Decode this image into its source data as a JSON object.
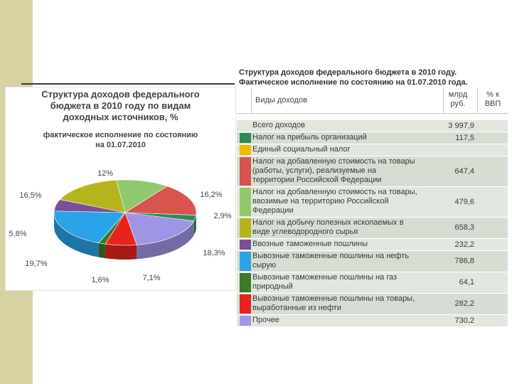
{
  "pie_panel": {
    "title_lines": [
      "Структура доходов федерального",
      "бюджета в 2010 году по видам",
      "доходных источников, %"
    ],
    "subtitle_lines": [
      "фактическое исполнение по состоянию",
      "на 01.07.2010"
    ]
  },
  "table_panel": {
    "caption_lines": [
      "Структура доходов федерального бюджета в 2010 году.",
      "Фактическое исполнение по состоянию на 01.07.2010 года."
    ],
    "header": {
      "col1": "Виды доходов",
      "col2_lines": [
        "млрд",
        "руб."
      ],
      "col3_lines": [
        "% к",
        "ВВП"
      ]
    },
    "rows": [
      {
        "lines": [
          "Всего доходов"
        ],
        "value": "3 997,9",
        "color": ""
      },
      {
        "lines": [
          "Налог на прибыль организаций"
        ],
        "value": "117,5",
        "color": "#2e8b57"
      },
      {
        "lines": [
          "Единый социальный налог"
        ],
        "value": "",
        "color": "#f5b800"
      },
      {
        "lines": [
          "Налог на добавленную стоимость на товары",
          "(работы, услуги), реализуемые на",
          "территории Российской Федерации"
        ],
        "value": "647,4",
        "color": "#d9534f"
      },
      {
        "lines": [
          "Налог на добавленную стоимость на товары,",
          "ввозимые на территорию Российской",
          "Федерации"
        ],
        "value": "479,6",
        "color": "#8fc96b"
      },
      {
        "lines": [
          "Налог на добычу полезных ископаемых в",
          "виде углеводородного сырья"
        ],
        "value": "658,3",
        "color": "#b5b41c"
      },
      {
        "lines": [
          "Ввозные таможенные пошлины"
        ],
        "value": "232,2",
        "color": "#7a4f9a"
      },
      {
        "lines": [
          "Вывозные таможенные пошлины на нефть",
          "сырую"
        ],
        "value": "786,8",
        "color": "#2aa3e8"
      },
      {
        "lines": [
          "Вывозные таможенные пошлины на газ",
          "природный"
        ],
        "value": "64,1",
        "color": "#3d7a26"
      },
      {
        "lines": [
          "Вывозные таможенные пошлины на товары,",
          "выработанные из нефти"
        ],
        "value": "282,2",
        "color": "#e8231e"
      },
      {
        "lines": [
          "Прочее"
        ],
        "value": "730,2",
        "color": "#9f95e6"
      }
    ]
  },
  "chart_data": {
    "type": "pie",
    "title": "Структура доходов федерального бюджета в 2010 году по видам доходных источников, %",
    "subtitle": "фактическое исполнение по состоянию на 01.07.2010",
    "slices": [
      {
        "label": "12%",
        "value": 12,
        "color": "#8fc96b"
      },
      {
        "label": "16,2%",
        "value": 16.2,
        "color": "#d9534f"
      },
      {
        "label": "2,9%",
        "value": 2.9,
        "color": "#2e8b57"
      },
      {
        "label": "18,3%",
        "value": 18.3,
        "color": "#9f95e6"
      },
      {
        "label": "7,1%",
        "value": 7.1,
        "color": "#e8231e"
      },
      {
        "label": "1,6%",
        "value": 1.6,
        "color": "#3d7a26"
      },
      {
        "label": "19,7%",
        "value": 19.7,
        "color": "#2aa3e8"
      },
      {
        "label": "5,8%",
        "value": 5.8,
        "color": "#7a4f9a"
      },
      {
        "label": "16,5%",
        "value": 16.5,
        "color": "#b5b41c"
      }
    ]
  }
}
